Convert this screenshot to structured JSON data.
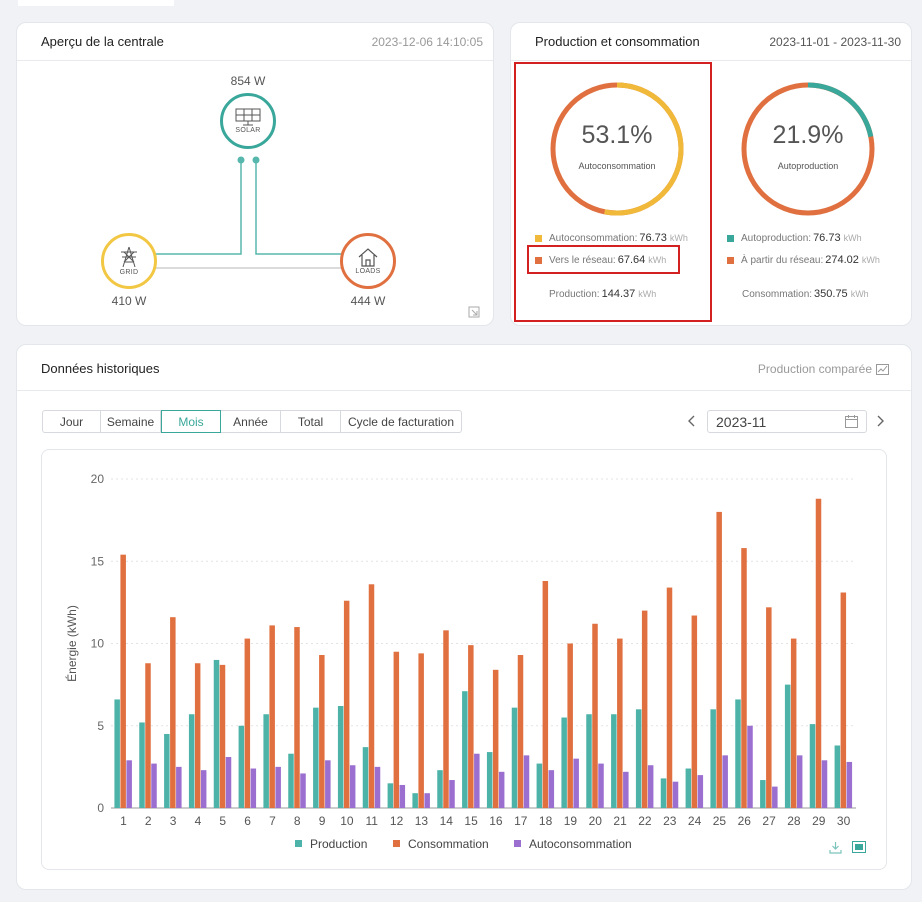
{
  "overview": {
    "title": "Aperçu de la centrale",
    "timestamp": "2023-12-06 14:10:05",
    "solar": {
      "power": "854 W",
      "label": "SOLAR"
    },
    "grid": {
      "power": "410 W",
      "label": "GRID"
    },
    "loads": {
      "power": "444 W",
      "label": "LOADS"
    },
    "colors": {
      "solar": "#3aa79b",
      "grid": "#f2c744",
      "loads": "#e07040"
    }
  },
  "prodcons": {
    "title": "Production et consommation",
    "range": "2023-11-01 - 2023-11-30",
    "left": {
      "percent": "53.1%",
      "label": "Autoconsommation",
      "rows": [
        {
          "label": "Autoconsommation:",
          "value": "76.73",
          "unit": "kWh",
          "color": "#f0b93a"
        },
        {
          "label": "Vers le réseau:",
          "value": "67.64",
          "unit": "kWh",
          "color": "#e07040"
        }
      ],
      "total": {
        "label": "Production:",
        "value": "144.37",
        "unit": "kWh"
      }
    },
    "right": {
      "percent": "21.9%",
      "label": "Autoproduction",
      "rows": [
        {
          "label": "Autoproduction:",
          "value": "76.73",
          "unit": "kWh",
          "color": "#3aa79b"
        },
        {
          "label": "À partir du réseau:",
          "value": "274.02",
          "unit": "kWh",
          "color": "#e07040"
        }
      ],
      "total": {
        "label": "Consommation:",
        "value": "350.75",
        "unit": "kWh"
      }
    }
  },
  "history": {
    "title": "Données historiques",
    "compare": "Production comparée",
    "tabs": [
      "Jour",
      "Semaine",
      "Mois",
      "Année",
      "Total",
      "Cycle de facturation"
    ],
    "active_tab": "Mois",
    "date": "2023-11"
  },
  "chart_data": {
    "type": "bar",
    "ylabel": "Énergie (kWh)",
    "ylim": [
      0,
      20
    ],
    "yticks": [
      0,
      5,
      10,
      15,
      20
    ],
    "categories": [
      "1",
      "2",
      "3",
      "4",
      "5",
      "6",
      "7",
      "8",
      "9",
      "10",
      "11",
      "12",
      "13",
      "14",
      "15",
      "16",
      "17",
      "18",
      "19",
      "20",
      "21",
      "22",
      "23",
      "24",
      "25",
      "26",
      "27",
      "28",
      "29",
      "30"
    ],
    "series": [
      {
        "name": "Production",
        "color": "#4db3a8",
        "values": [
          6.6,
          5.2,
          4.5,
          5.7,
          9.0,
          5.0,
          5.7,
          3.3,
          6.1,
          6.2,
          3.7,
          1.5,
          0.9,
          2.3,
          7.1,
          3.4,
          6.1,
          2.7,
          5.5,
          5.7,
          5.7,
          6.0,
          1.8,
          2.4,
          6.0,
          6.6,
          1.7,
          7.5,
          5.1,
          3.8
        ]
      },
      {
        "name": "Consommation",
        "color": "#e07040",
        "values": [
          15.4,
          8.8,
          11.6,
          8.8,
          8.7,
          10.3,
          11.1,
          11.0,
          9.3,
          12.6,
          13.6,
          9.5,
          9.4,
          10.8,
          9.9,
          8.4,
          9.3,
          13.8,
          10.0,
          11.2,
          10.3,
          12.0,
          13.4,
          11.7,
          18.0,
          15.8,
          12.2,
          10.3,
          18.8,
          13.1
        ]
      },
      {
        "name": "Autoconsommation",
        "color": "#9b6fcf",
        "values": [
          2.9,
          2.7,
          2.5,
          2.3,
          3.1,
          2.4,
          2.5,
          2.1,
          2.9,
          2.6,
          2.5,
          1.4,
          0.9,
          1.7,
          3.3,
          2.2,
          3.2,
          2.3,
          3.0,
          2.7,
          2.2,
          2.6,
          1.6,
          2.0,
          3.2,
          5.0,
          1.3,
          3.2,
          2.9,
          2.8
        ]
      }
    ]
  }
}
